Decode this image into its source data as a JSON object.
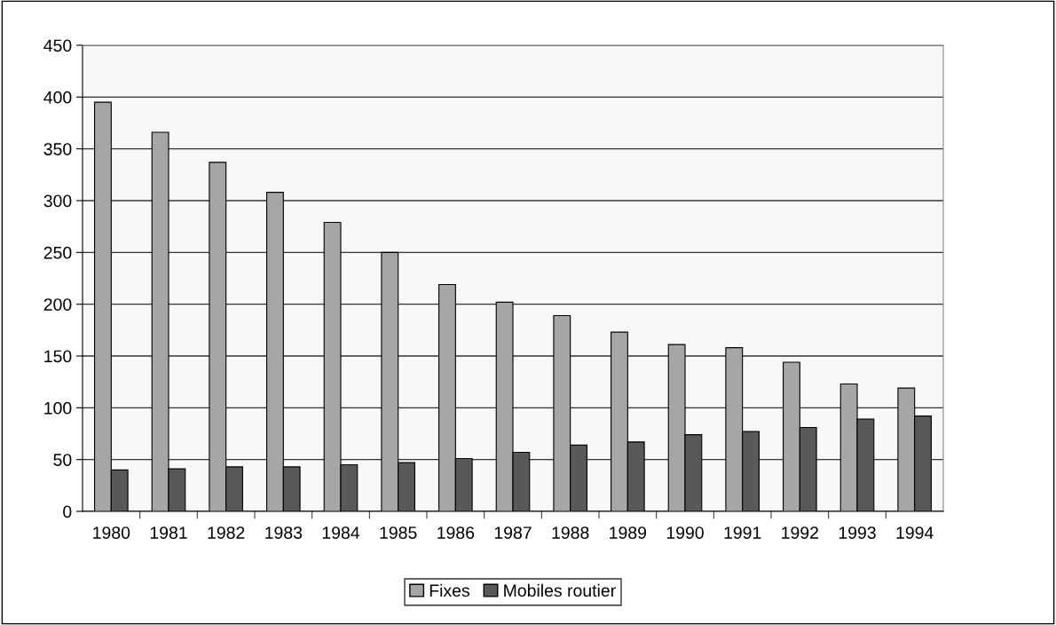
{
  "chart_data": {
    "type": "bar",
    "categories": [
      "1980",
      "1981",
      "1982",
      "1983",
      "1984",
      "1985",
      "1986",
      "1987",
      "1988",
      "1989",
      "1990",
      "1991",
      "1992",
      "1993",
      "1994"
    ],
    "series": [
      {
        "name": "Fixes",
        "color": "#a6a6a6",
        "values": [
          395,
          366,
          337,
          308,
          279,
          250,
          219,
          202,
          189,
          173,
          161,
          158,
          144,
          123,
          119
        ]
      },
      {
        "name": "Mobiles routier",
        "color": "#595959",
        "values": [
          40,
          41,
          43,
          43,
          45,
          47,
          51,
          57,
          64,
          67,
          74,
          77,
          81,
          89,
          92
        ]
      }
    ],
    "ylim": [
      0,
      450
    ],
    "yticks": [
      0,
      50,
      100,
      150,
      200,
      250,
      300,
      350,
      400,
      450
    ],
    "grid": "y",
    "legend": "bottom"
  }
}
